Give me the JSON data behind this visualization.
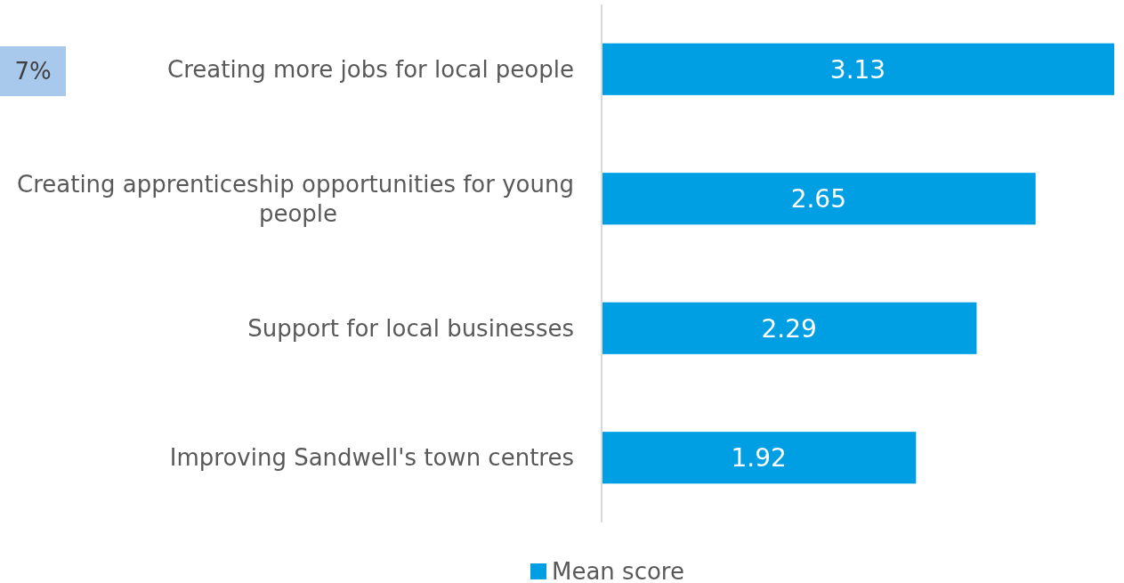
{
  "chart_data": {
    "type": "bar",
    "orientation": "horizontal",
    "categories": [
      "Creating more jobs for local people",
      "Creating apprenticeship opportunities for young people",
      "Support for local businesses",
      "Improving Sandwell's town centres"
    ],
    "series": [
      {
        "name": "Mean score",
        "color": "#009fe3",
        "values": [
          3.13,
          2.65,
          2.29,
          1.92
        ]
      }
    ],
    "data_labels": true,
    "legend": "bottom",
    "annotations": [
      "7%"
    ]
  }
}
